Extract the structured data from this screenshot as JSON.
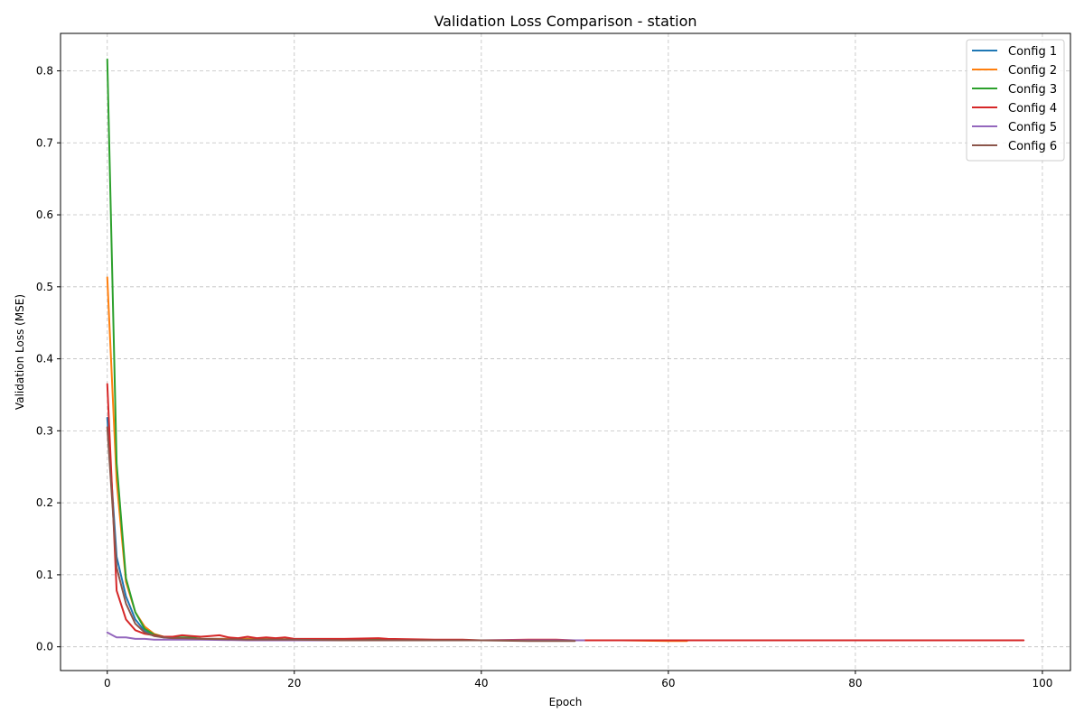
{
  "chart_data": {
    "type": "line",
    "title": "Validation Loss Comparison - station",
    "xlabel": "Epoch",
    "ylabel": "Validation Loss (MSE)",
    "xlim": [
      -5,
      103
    ],
    "ylim": [
      -0.033,
      0.852
    ],
    "xticks": [
      0,
      20,
      40,
      60,
      80,
      100
    ],
    "yticks": [
      0.0,
      0.1,
      0.2,
      0.3,
      0.4,
      0.5,
      0.6,
      0.7,
      0.8
    ],
    "grid": true,
    "legend_position": "top-right",
    "series": [
      {
        "name": "Config 1",
        "color": "#1f77b4",
        "x": [
          0,
          1,
          2,
          3,
          4,
          5,
          6,
          7,
          8,
          9,
          10,
          15,
          20,
          25,
          30,
          35,
          40,
          45,
          50
        ],
        "y": [
          0.318,
          0.125,
          0.07,
          0.038,
          0.022,
          0.016,
          0.013,
          0.012,
          0.012,
          0.011,
          0.011,
          0.011,
          0.01,
          0.01,
          0.01,
          0.009,
          0.009,
          0.009,
          0.009
        ]
      },
      {
        "name": "Config 2",
        "color": "#ff7f0e",
        "x": [
          0,
          1,
          2,
          3,
          4,
          5,
          6,
          7,
          8,
          10,
          15,
          20,
          25,
          30,
          35,
          40,
          45,
          50,
          55,
          60,
          62
        ],
        "y": [
          0.513,
          0.23,
          0.09,
          0.048,
          0.028,
          0.018,
          0.014,
          0.013,
          0.012,
          0.011,
          0.011,
          0.01,
          0.01,
          0.009,
          0.009,
          0.009,
          0.009,
          0.009,
          0.009,
          0.008,
          0.008
        ]
      },
      {
        "name": "Config 3",
        "color": "#2ca02c",
        "x": [
          0,
          1,
          2,
          3,
          4,
          5,
          6,
          7,
          8,
          9,
          10,
          12,
          15,
          20,
          25,
          30,
          35,
          40,
          45,
          50
        ],
        "y": [
          0.816,
          0.255,
          0.095,
          0.048,
          0.025,
          0.017,
          0.014,
          0.013,
          0.013,
          0.013,
          0.011,
          0.01,
          0.01,
          0.01,
          0.01,
          0.01,
          0.009,
          0.009,
          0.009,
          0.009
        ]
      },
      {
        "name": "Config 4",
        "color": "#d62728",
        "x": [
          0,
          1,
          2,
          3,
          4,
          5,
          6,
          7,
          8,
          9,
          10,
          11,
          12,
          13,
          14,
          15,
          16,
          17,
          18,
          19,
          20,
          25,
          29,
          30,
          35,
          38,
          40,
          45,
          48,
          50,
          55,
          60,
          65,
          70,
          75,
          80,
          85,
          90,
          95,
          98
        ],
        "y": [
          0.365,
          0.078,
          0.038,
          0.023,
          0.018,
          0.016,
          0.014,
          0.014,
          0.016,
          0.015,
          0.014,
          0.015,
          0.016,
          0.013,
          0.012,
          0.014,
          0.012,
          0.013,
          0.012,
          0.013,
          0.011,
          0.011,
          0.012,
          0.011,
          0.01,
          0.01,
          0.009,
          0.01,
          0.01,
          0.009,
          0.009,
          0.009,
          0.009,
          0.009,
          0.009,
          0.009,
          0.009,
          0.009,
          0.009,
          0.009
        ]
      },
      {
        "name": "Config 5",
        "color": "#9467bd",
        "x": [
          0,
          1,
          2,
          3,
          4,
          5,
          6,
          8,
          10,
          15,
          20,
          25,
          30,
          35,
          40,
          45,
          50,
          51
        ],
        "y": [
          0.02,
          0.013,
          0.013,
          0.011,
          0.011,
          0.01,
          0.01,
          0.01,
          0.01,
          0.009,
          0.009,
          0.009,
          0.009,
          0.009,
          0.009,
          0.009,
          0.009,
          0.009
        ]
      },
      {
        "name": "Config 6",
        "color": "#8c564b",
        "x": [
          0,
          1,
          2,
          3,
          4,
          5,
          6,
          7,
          8,
          10,
          15,
          20,
          25,
          30,
          35,
          40,
          45,
          50
        ],
        "y": [
          0.305,
          0.11,
          0.06,
          0.032,
          0.02,
          0.015,
          0.013,
          0.012,
          0.012,
          0.011,
          0.01,
          0.01,
          0.009,
          0.009,
          0.009,
          0.009,
          0.008,
          0.008
        ]
      }
    ]
  }
}
